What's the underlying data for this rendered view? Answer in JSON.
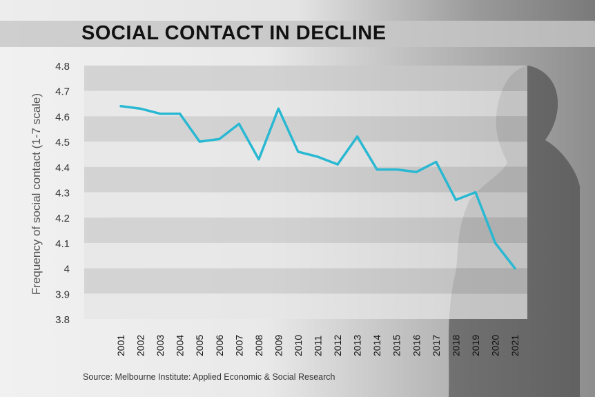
{
  "title": "SOCIAL CONTACT IN DECLINE",
  "source": "Source: Melbourne Institute: Applied Economic & Social Research",
  "colors": {
    "line": "#29b8d2",
    "band_dark": "#c9c9c9",
    "band_light": "#e6e6e6"
  },
  "chart_data": {
    "type": "line",
    "title": "SOCIAL CONTACT IN DECLINE",
    "xlabel": "",
    "ylabel": "Frequency of social contact (1-7 scale)",
    "categories": [
      "2001",
      "2002",
      "2003",
      "2004",
      "2005",
      "2006",
      "2007",
      "2008",
      "2009",
      "2010",
      "2011",
      "2012",
      "2013",
      "2014",
      "2015",
      "2016",
      "2017",
      "2018",
      "2019",
      "2020",
      "2021"
    ],
    "series": [
      {
        "values": [
          4.64,
          4.63,
          4.61,
          4.61,
          4.5,
          4.51,
          4.57,
          4.43,
          4.63,
          4.46,
          4.44,
          4.41,
          4.52,
          4.39,
          4.39,
          4.38,
          4.42,
          4.27,
          4.3,
          4.1,
          4.0
        ]
      }
    ],
    "yticks": [
      "4.8",
      "4.7",
      "4.6",
      "4.5",
      "4.4",
      "4.3",
      "4.2",
      "4.1",
      "4",
      "3.9",
      "3.8"
    ],
    "ylim": [
      3.8,
      4.8
    ],
    "grid": "alternating horizontal bands",
    "legend": "none"
  }
}
